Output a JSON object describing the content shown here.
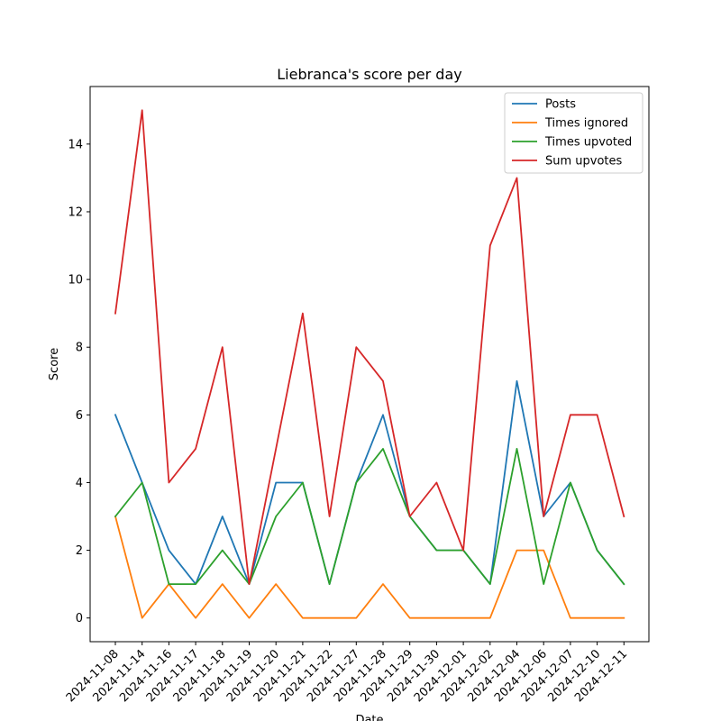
{
  "chart_data": {
    "type": "line",
    "title": "Liebranca's score per day",
    "xlabel": "Date",
    "ylabel": "Score",
    "ylim": [
      -0.7,
      15.7
    ],
    "yticks": [
      0,
      2,
      4,
      6,
      8,
      10,
      12,
      14
    ],
    "grid": false,
    "legend_position": "top-right",
    "categories": [
      "2024-11-08",
      "2024-11-14",
      "2024-11-16",
      "2024-11-17",
      "2024-11-18",
      "2024-11-19",
      "2024-11-20",
      "2024-11-21",
      "2024-11-22",
      "2024-11-27",
      "2024-11-28",
      "2024-11-29",
      "2024-11-30",
      "2024-12-01",
      "2024-12-02",
      "2024-12-04",
      "2024-12-06",
      "2024-12-07",
      "2024-12-10",
      "2024-12-11"
    ],
    "series": [
      {
        "name": "Posts",
        "color": "#1f77b4",
        "values": [
          6,
          4,
          2,
          1,
          3,
          1,
          4,
          4,
          1,
          4,
          6,
          3,
          2,
          2,
          1,
          7,
          3,
          4,
          2,
          1
        ]
      },
      {
        "name": "Times ignored",
        "color": "#ff7f0e",
        "values": [
          3,
          0,
          1,
          0,
          1,
          0,
          1,
          0,
          0,
          0,
          1,
          0,
          0,
          0,
          0,
          2,
          2,
          0,
          0,
          0
        ]
      },
      {
        "name": "Times upvoted",
        "color": "#2ca02c",
        "values": [
          3,
          4,
          1,
          1,
          2,
          1,
          3,
          4,
          1,
          4,
          5,
          3,
          2,
          2,
          1,
          5,
          1,
          4,
          2,
          1
        ]
      },
      {
        "name": "Sum upvotes",
        "color": "#d62728",
        "values": [
          9,
          15,
          4,
          5,
          8,
          1,
          5,
          9,
          3,
          8,
          7,
          3,
          4,
          2,
          11,
          13,
          3,
          6,
          6,
          3
        ]
      }
    ]
  }
}
